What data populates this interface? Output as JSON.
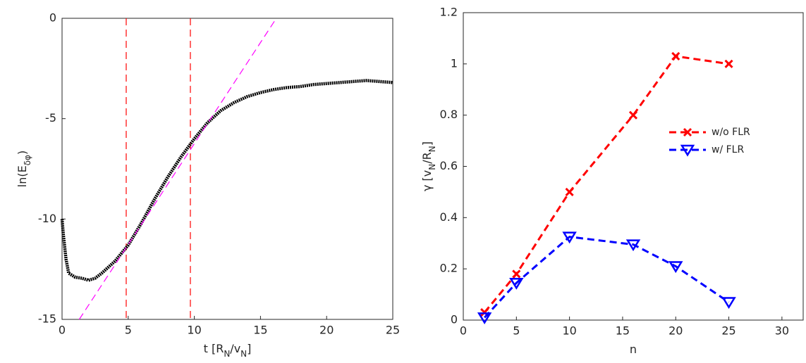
{
  "chart_data": [
    {
      "type": "line",
      "xlabel": [
        {
          "text": "t [R"
        },
        {
          "text": "N",
          "sub": true
        },
        {
          "text": "/v"
        },
        {
          "text": "N",
          "sub": true
        },
        {
          "text": "]"
        }
      ],
      "ylabel": [
        {
          "text": "ln(E"
        },
        {
          "text": "δφ",
          "sub": true
        },
        {
          "text": ")"
        }
      ],
      "xlim": [
        0,
        25
      ],
      "xticks": [
        0,
        5,
        10,
        15,
        20,
        25
      ],
      "ylim": [
        -15,
        0
      ],
      "yticks": [
        -15,
        -10,
        -5,
        0
      ],
      "vlines": [
        4.85,
        9.7
      ],
      "vline_color": "#ff0000",
      "series": [
        {
          "color": "#000000",
          "style": "thick",
          "x": [
            0,
            0.1,
            0.3,
            0.5,
            1,
            1.5,
            2,
            2.5,
            3,
            3.5,
            4,
            4.5,
            5,
            6,
            7,
            8,
            9,
            10,
            11,
            12,
            13,
            14,
            15,
            16,
            17,
            18,
            19,
            20,
            21,
            22,
            23,
            24,
            25
          ],
          "values": [
            -10,
            -10.8,
            -12,
            -12.7,
            -12.9,
            -12.95,
            -13.05,
            -12.95,
            -12.7,
            -12.4,
            -12.1,
            -11.7,
            -11.3,
            -10.2,
            -9.0,
            -7.9,
            -6.9,
            -6.0,
            -5.2,
            -4.6,
            -4.2,
            -3.9,
            -3.7,
            -3.55,
            -3.45,
            -3.4,
            -3.3,
            -3.25,
            -3.2,
            -3.15,
            -3.1,
            -3.15,
            -3.2
          ]
        },
        {
          "color": "#ff00ff",
          "style": "dashed",
          "x": [
            1.3,
            16.2
          ],
          "values": [
            -15,
            0
          ]
        }
      ]
    },
    {
      "type": "line",
      "xlabel": [
        {
          "text": "n"
        }
      ],
      "ylabel": [
        {
          "text": "γ [v"
        },
        {
          "text": "N",
          "sub": true
        },
        {
          "text": "/R"
        },
        {
          "text": "N",
          "sub": true
        },
        {
          "text": "]"
        }
      ],
      "xlim": [
        0,
        32
      ],
      "xticks": [
        0,
        5,
        10,
        15,
        20,
        25,
        30
      ],
      "ylim": [
        0,
        1.2
      ],
      "yticks": [
        0,
        0.2,
        0.4,
        0.6,
        0.8,
        1,
        1.2
      ],
      "legend": "northeast",
      "series": [
        {
          "name": "w/o FLR",
          "color": "#ff0000",
          "style": "dashed",
          "marker": "x",
          "x": [
            2,
            5,
            10,
            16,
            20,
            25
          ],
          "values": [
            0.03,
            0.18,
            0.5,
            0.8,
            1.03,
            1.0
          ]
        },
        {
          "name": "w/ FLR",
          "color": "#0000ff",
          "style": "dashed",
          "marker": "triangle-down",
          "x": [
            2,
            5,
            10,
            16,
            20,
            25
          ],
          "values": [
            0.01,
            0.145,
            0.325,
            0.295,
            0.21,
            0.07
          ]
        }
      ]
    }
  ]
}
